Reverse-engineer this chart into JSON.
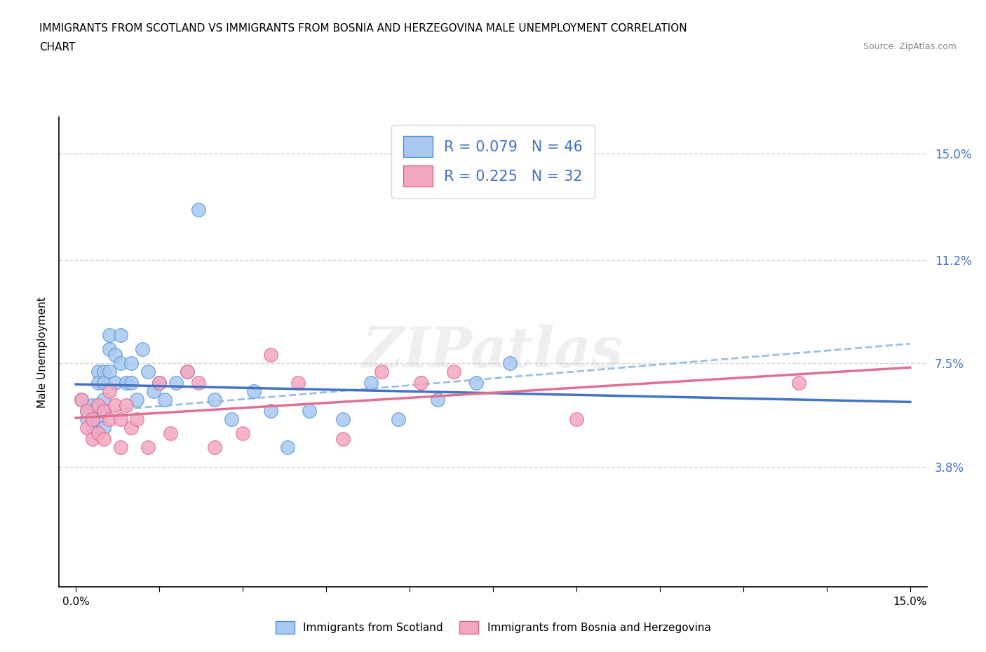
{
  "title_line1": "IMMIGRANTS FROM SCOTLAND VS IMMIGRANTS FROM BOSNIA AND HERZEGOVINA MALE UNEMPLOYMENT CORRELATION",
  "title_line2": "CHART",
  "source_text": "Source: ZipAtlas.com",
  "ylabel": "Male Unemployment",
  "x_tick_labels_left": "0.0%",
  "x_tick_labels_right": "15.0%",
  "y_tick_labels": [
    "3.8%",
    "7.5%",
    "11.2%",
    "15.0%"
  ],
  "y_tick_values": [
    0.038,
    0.075,
    0.112,
    0.15
  ],
  "legend_label1": "R = 0.079   N = 46",
  "legend_label2": "R = 0.225   N = 32",
  "color_scotland_fill": "#a8c8f0",
  "color_scotland_edge": "#5090d0",
  "color_bosnia_fill": "#f4a8c0",
  "color_bosnia_edge": "#e06090",
  "color_scotland_reg": "#4472c4",
  "color_bosnia_reg": "#e07090",
  "color_dashed": "#9bbfe0",
  "color_grid": "#cccccc",
  "watermark": "ZIPatlas",
  "legend_cat1": "Immigrants from Scotland",
  "legend_cat2": "Immigrants from Bosnia and Herzegovina",
  "scotland_x": [
    0.001,
    0.002,
    0.002,
    0.003,
    0.003,
    0.003,
    0.004,
    0.004,
    0.004,
    0.004,
    0.005,
    0.005,
    0.005,
    0.005,
    0.005,
    0.006,
    0.006,
    0.006,
    0.007,
    0.007,
    0.008,
    0.008,
    0.009,
    0.01,
    0.01,
    0.011,
    0.012,
    0.013,
    0.014,
    0.015,
    0.016,
    0.018,
    0.02,
    0.022,
    0.025,
    0.028,
    0.032,
    0.035,
    0.038,
    0.042,
    0.048,
    0.053,
    0.058,
    0.065,
    0.072,
    0.078
  ],
  "scotland_y": [
    0.062,
    0.058,
    0.055,
    0.06,
    0.055,
    0.052,
    0.072,
    0.068,
    0.06,
    0.055,
    0.072,
    0.068,
    0.062,
    0.058,
    0.052,
    0.085,
    0.08,
    0.072,
    0.078,
    0.068,
    0.085,
    0.075,
    0.068,
    0.075,
    0.068,
    0.062,
    0.08,
    0.072,
    0.065,
    0.068,
    0.062,
    0.068,
    0.072,
    0.13,
    0.062,
    0.055,
    0.065,
    0.058,
    0.045,
    0.058,
    0.055,
    0.068,
    0.055,
    0.062,
    0.068,
    0.075
  ],
  "bosnia_x": [
    0.001,
    0.002,
    0.002,
    0.003,
    0.003,
    0.004,
    0.004,
    0.005,
    0.005,
    0.006,
    0.006,
    0.007,
    0.008,
    0.008,
    0.009,
    0.01,
    0.011,
    0.013,
    0.015,
    0.017,
    0.02,
    0.022,
    0.025,
    0.03,
    0.035,
    0.04,
    0.048,
    0.055,
    0.062,
    0.068,
    0.09,
    0.13
  ],
  "bosnia_y": [
    0.062,
    0.058,
    0.052,
    0.055,
    0.048,
    0.06,
    0.05,
    0.058,
    0.048,
    0.065,
    0.055,
    0.06,
    0.055,
    0.045,
    0.06,
    0.052,
    0.055,
    0.045,
    0.068,
    0.05,
    0.072,
    0.068,
    0.045,
    0.05,
    0.078,
    0.068,
    0.048,
    0.072,
    0.068,
    0.072,
    0.055,
    0.068
  ],
  "background_color": "#ffffff"
}
